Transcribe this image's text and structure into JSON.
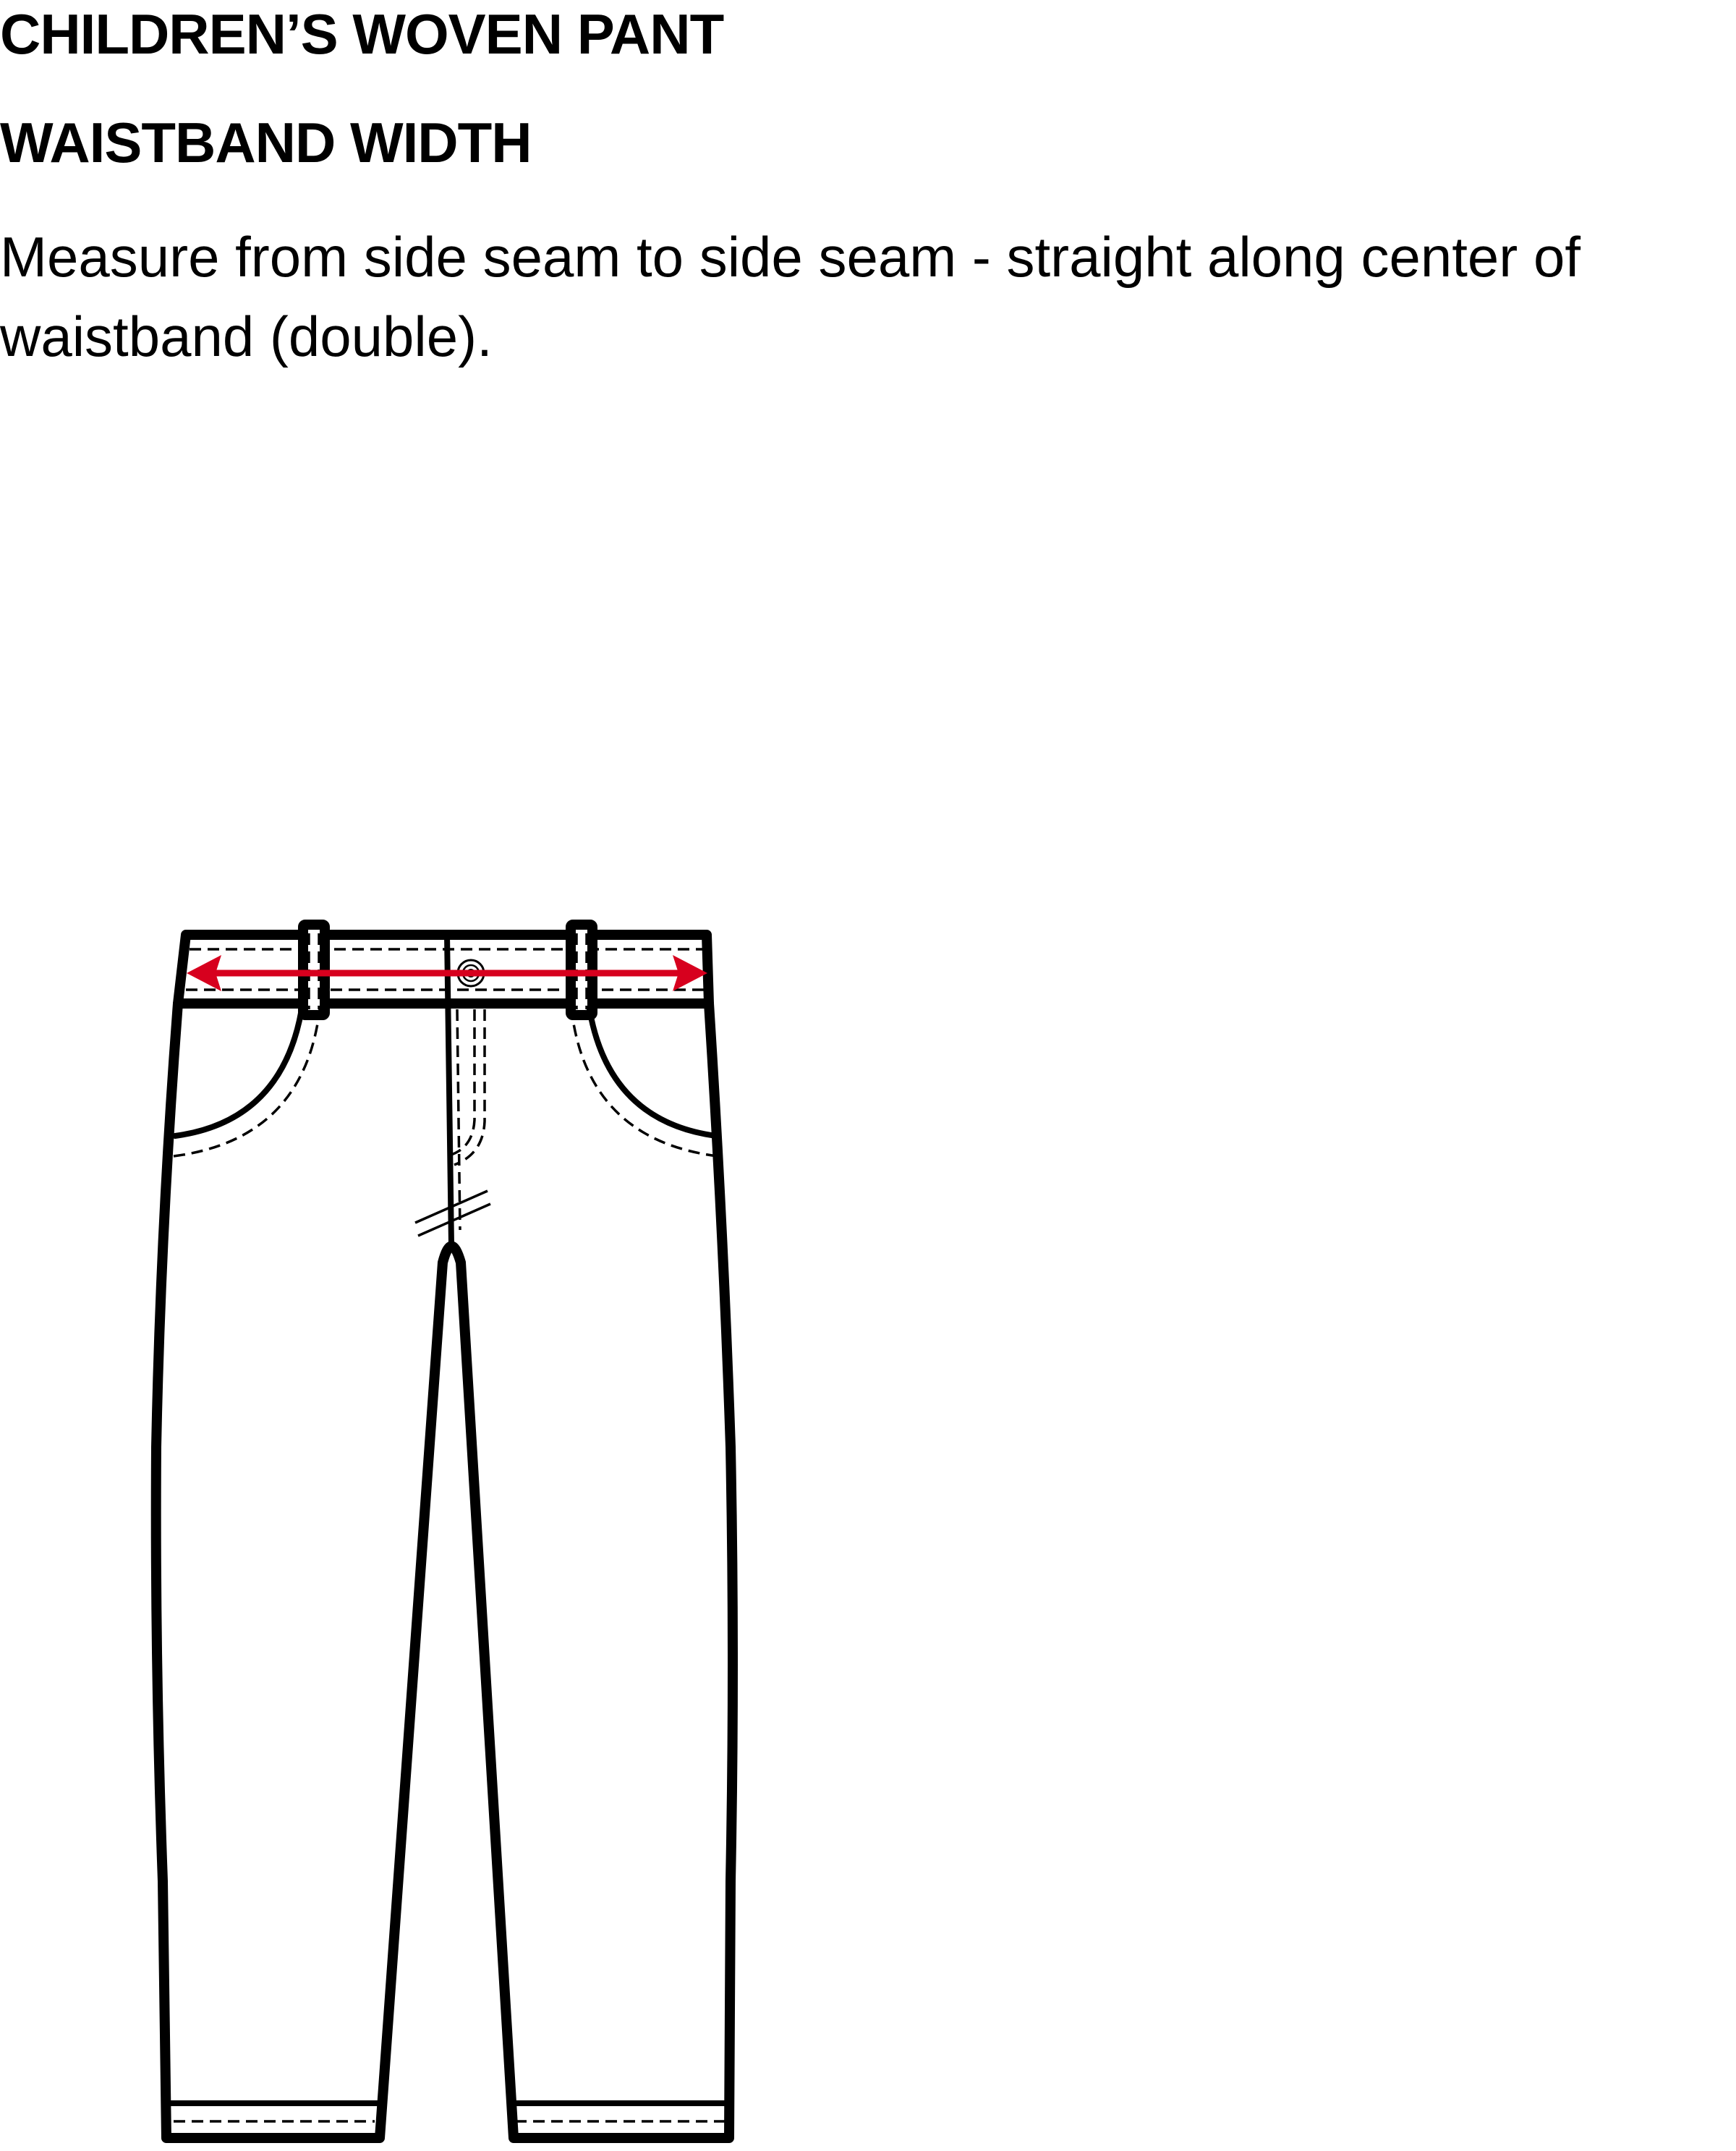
{
  "header": {
    "title": "CHILDREN’S WOVEN PANT",
    "section": "WAISTBAND WIDTH"
  },
  "instructions": {
    "line1": "Measure from side seam to side seam - straight along center of",
    "line2": "waistband (double)."
  },
  "diagram": {
    "garment": "woven-pant",
    "measurement": "waistband-width",
    "arrow_color": "#d7001e",
    "line_color": "#000000"
  }
}
